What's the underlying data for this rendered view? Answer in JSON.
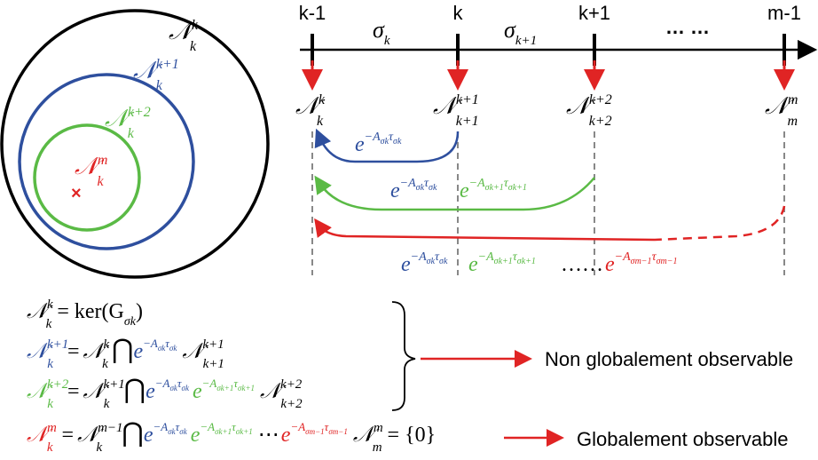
{
  "colors": {
    "black": "#000000",
    "blue": "#2e4f9e",
    "green": "#5aba45",
    "red": "#e02424",
    "gray": "#888888"
  },
  "venn": {
    "outer": {
      "base": "𝒩",
      "sub": "k",
      "sup": "k"
    },
    "middle": {
      "base": "𝒩",
      "sub": "k",
      "sup": "k+1"
    },
    "inner": {
      "base": "𝒩",
      "sub": "k",
      "sup": "k+2"
    },
    "center": {
      "base": "𝒩",
      "sub": "k",
      "sup": "m"
    },
    "point_marker": "×"
  },
  "timeline": {
    "ticks": [
      "k-1",
      "k",
      "k+1",
      "m-1"
    ],
    "ellipsis": "… …",
    "intervals": [
      {
        "base": "σ",
        "sub": "k"
      },
      {
        "base": "σ",
        "sub": "k+1"
      }
    ],
    "subspaces": [
      {
        "base": "𝒩",
        "sub": "k",
        "sup": "k"
      },
      {
        "base": "𝒩",
        "sub": "k+1",
        "sup": "k+1"
      },
      {
        "base": "𝒩",
        "sub": "k+2",
        "sup": "k+2"
      },
      {
        "base": "𝒩",
        "sub": "m",
        "sup": "m"
      }
    ]
  },
  "transitions": {
    "blue": {
      "base": "e",
      "sup": "−A",
      "sup_sub": "σk",
      "sup2": "τ",
      "sup2_sub": "σk"
    },
    "green1": {
      "base": "e",
      "sup": "−A",
      "sup_sub": "σk",
      "sup2": "τ",
      "sup2_sub": "σk"
    },
    "green2": {
      "base": "e",
      "sup": "−A",
      "sup_sub": "σk+1",
      "sup2": "τ",
      "sup2_sub": "σk+1"
    },
    "bottom_blue": {
      "base": "e",
      "sup": "−A",
      "sup_sub": "σk",
      "sup2": "τ",
      "sup2_sub": "σk"
    },
    "bottom_green": {
      "base": "e",
      "sup": "−A",
      "sup_sub": "σk+1",
      "sup2": "τ",
      "sup2_sub": "σk+1"
    },
    "bottom_dots": "……",
    "bottom_red": {
      "base": "e",
      "sup": "−A",
      "sup_sub": "σm−1",
      "sup2": "τ",
      "sup2_sub": "σm−1"
    }
  },
  "equations": {
    "eq1_rhs": "= ker(G",
    "eq1_sub": "σk",
    "eq1_close": ")",
    "eq2_eq": "=",
    "eq3_eq": "=",
    "eq4_eq": "=",
    "cap": "⋂",
    "eq4_dots": "⋯",
    "eq4_end": "= {0}"
  },
  "results": {
    "non_observable": "Non globalement observable",
    "observable": "Globalement observable"
  }
}
